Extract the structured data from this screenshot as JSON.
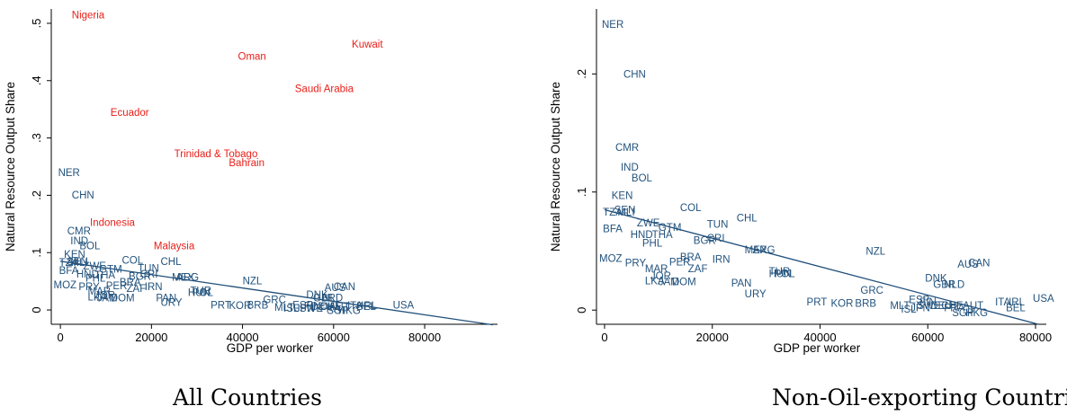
{
  "colors": {
    "oil": "#e8201a",
    "non_oil": "#23537d",
    "fit": "#1f4e79"
  },
  "chart_data": [
    {
      "type": "scatter",
      "caption": "All Countries",
      "xlabel": "GDP per worker",
      "ylabel": "Natural Resource Output Share",
      "xlim": [
        -2000,
        96000
      ],
      "ylim": [
        -0.025,
        0.525
      ],
      "xticks": [
        0,
        20000,
        40000,
        60000,
        80000
      ],
      "xtick_labels": [
        "0",
        "20000",
        "40000",
        "60000",
        "80000"
      ],
      "yticks": [
        0,
        0.1,
        0.2,
        0.3,
        0.4,
        0.5
      ],
      "ytick_labels": [
        "0",
        ".1",
        ".2",
        ".3",
        ".4",
        ".5"
      ],
      "fit_line": {
        "x": [
          0,
          95000
        ],
        "y": [
          0.085,
          -0.026
        ]
      },
      "points": [
        {
          "label": "Nigeria",
          "x": 2500,
          "y": 0.515,
          "group": "oil"
        },
        {
          "label": "Oman",
          "x": 39000,
          "y": 0.443,
          "group": "oil"
        },
        {
          "label": "Kuwait",
          "x": 64000,
          "y": 0.464,
          "group": "oil"
        },
        {
          "label": "Saudi Arabia",
          "x": 51500,
          "y": 0.386,
          "group": "oil"
        },
        {
          "label": "Ecuador",
          "x": 11000,
          "y": 0.345,
          "group": "oil"
        },
        {
          "label": "Trinidad & Tobago",
          "x": 25000,
          "y": 0.273,
          "group": "oil"
        },
        {
          "label": "Bahrain",
          "x": 37000,
          "y": 0.257,
          "group": "oil"
        },
        {
          "label": "Indonesia",
          "x": 6500,
          "y": 0.153,
          "group": "oil"
        },
        {
          "label": "Malaysia",
          "x": 20500,
          "y": 0.112,
          "group": "oil"
        },
        {
          "label": "NER",
          "x": -500,
          "y": 0.24,
          "group": "non_oil"
        },
        {
          "label": "CHN",
          "x": 2500,
          "y": 0.201,
          "group": "non_oil"
        },
        {
          "label": "CMR",
          "x": 1500,
          "y": 0.138,
          "group": "non_oil"
        },
        {
          "label": "IND",
          "x": 2200,
          "y": 0.121,
          "group": "non_oil"
        },
        {
          "label": "BOL",
          "x": 4200,
          "y": 0.112,
          "group": "non_oil"
        },
        {
          "label": "KEN",
          "x": 800,
          "y": 0.097,
          "group": "non_oil"
        },
        {
          "label": "TZA",
          "x": -300,
          "y": 0.083,
          "group": "non_oil"
        },
        {
          "label": "SEN",
          "x": 1400,
          "y": 0.085,
          "group": "non_oil"
        },
        {
          "label": "MLI",
          "x": 2200,
          "y": 0.083,
          "group": "non_oil"
        },
        {
          "label": "BFA",
          "x": -300,
          "y": 0.069,
          "group": "non_oil"
        },
        {
          "label": "ZWE",
          "x": 5000,
          "y": 0.077,
          "group": "non_oil"
        },
        {
          "label": "HND",
          "x": 3500,
          "y": 0.063,
          "group": "non_oil"
        },
        {
          "label": "THA",
          "x": 7500,
          "y": 0.061,
          "group": "non_oil"
        },
        {
          "label": "GTM",
          "x": 8500,
          "y": 0.071,
          "group": "non_oil"
        },
        {
          "label": "PHL",
          "x": 5500,
          "y": 0.056,
          "group": "non_oil"
        },
        {
          "label": "COL",
          "x": 13500,
          "y": 0.087,
          "group": "non_oil"
        },
        {
          "label": "TUN",
          "x": 17000,
          "y": 0.073,
          "group": "non_oil"
        },
        {
          "label": "BGR",
          "x": 15000,
          "y": 0.059,
          "group": "non_oil"
        },
        {
          "label": "CRI",
          "x": 17500,
          "y": 0.063,
          "group": "non_oil"
        },
        {
          "label": "CHL",
          "x": 22000,
          "y": 0.085,
          "group": "non_oil"
        },
        {
          "label": "MEX",
          "x": 24500,
          "y": 0.057,
          "group": "non_oil"
        },
        {
          "label": "ARG",
          "x": 25500,
          "y": 0.057,
          "group": "non_oil"
        },
        {
          "label": "IRN",
          "x": 18500,
          "y": 0.041,
          "group": "non_oil"
        },
        {
          "label": "BRA",
          "x": 13000,
          "y": 0.049,
          "group": "non_oil"
        },
        {
          "label": "PER",
          "x": 10000,
          "y": 0.042,
          "group": "non_oil"
        },
        {
          "label": "ZAF",
          "x": 14500,
          "y": 0.038,
          "group": "non_oil"
        },
        {
          "label": "MOZ",
          "x": -1500,
          "y": 0.044,
          "group": "non_oil"
        },
        {
          "label": "PRY",
          "x": 4000,
          "y": 0.041,
          "group": "non_oil"
        },
        {
          "label": "MAR",
          "x": 6000,
          "y": 0.033,
          "group": "non_oil"
        },
        {
          "label": "JOR",
          "x": 7500,
          "y": 0.026,
          "group": "non_oil"
        },
        {
          "label": "LKA",
          "x": 6000,
          "y": 0.023,
          "group": "non_oil"
        },
        {
          "label": "JAM",
          "x": 8000,
          "y": 0.021,
          "group": "non_oil"
        },
        {
          "label": "DOM",
          "x": 11000,
          "y": 0.021,
          "group": "non_oil"
        },
        {
          "label": "PAN",
          "x": 21000,
          "y": 0.021,
          "group": "non_oil"
        },
        {
          "label": "URY",
          "x": 22000,
          "y": 0.013,
          "group": "non_oil"
        },
        {
          "label": "HUN",
          "x": 28000,
          "y": 0.031,
          "group": "non_oil"
        },
        {
          "label": "TUR",
          "x": 28500,
          "y": 0.034,
          "group": "non_oil"
        },
        {
          "label": "POL",
          "x": 29000,
          "y": 0.031,
          "group": "non_oil"
        },
        {
          "label": "NZL",
          "x": 40000,
          "y": 0.051,
          "group": "non_oil"
        },
        {
          "label": "PRT",
          "x": 33000,
          "y": 0.009,
          "group": "non_oil"
        },
        {
          "label": "KOR",
          "x": 37000,
          "y": 0.008,
          "group": "non_oil"
        },
        {
          "label": "BRB",
          "x": 41000,
          "y": 0.009,
          "group": "non_oil"
        },
        {
          "label": "GRC",
          "x": 44500,
          "y": 0.018,
          "group": "non_oil"
        },
        {
          "label": "DNK",
          "x": 54000,
          "y": 0.027,
          "group": "non_oil"
        },
        {
          "label": "GBR",
          "x": 55500,
          "y": 0.021,
          "group": "non_oil"
        },
        {
          "label": "NLD",
          "x": 57500,
          "y": 0.021,
          "group": "non_oil"
        },
        {
          "label": "AUS",
          "x": 58000,
          "y": 0.039,
          "group": "non_oil"
        },
        {
          "label": "CAN",
          "x": 60000,
          "y": 0.041,
          "group": "non_oil"
        },
        {
          "label": "MLT",
          "x": 47000,
          "y": 0.005,
          "group": "non_oil"
        },
        {
          "label": "ISL",
          "x": 49000,
          "y": 0.003,
          "group": "non_oil"
        },
        {
          "label": "ESP",
          "x": 51000,
          "y": 0.009,
          "group": "non_oil"
        },
        {
          "label": "JPN",
          "x": 51500,
          "y": 0.003,
          "group": "non_oil"
        },
        {
          "label": "SWE",
          "x": 52500,
          "y": 0.003,
          "group": "non_oil"
        },
        {
          "label": "FIN",
          "x": 53500,
          "y": 0.007,
          "group": "non_oil"
        },
        {
          "label": "DEU",
          "x": 55000,
          "y": 0.006,
          "group": "non_oil"
        },
        {
          "label": "CHE",
          "x": 57000,
          "y": 0.006,
          "group": "non_oil"
        },
        {
          "label": "AUT",
          "x": 59000,
          "y": 0.006,
          "group": "non_oil"
        },
        {
          "label": "FRA",
          "x": 57000,
          "y": 0.003,
          "group": "non_oil"
        },
        {
          "label": "SGP",
          "x": 58500,
          "y": -0.001,
          "group": "non_oil"
        },
        {
          "label": "HKG",
          "x": 61000,
          "y": -0.001,
          "group": "non_oil"
        },
        {
          "label": "ITA",
          "x": 63000,
          "y": 0.008,
          "group": "non_oil"
        },
        {
          "label": "IRL",
          "x": 66000,
          "y": 0.008,
          "group": "non_oil"
        },
        {
          "label": "BEL",
          "x": 65000,
          "y": 0.006,
          "group": "non_oil"
        },
        {
          "label": "USA",
          "x": 73000,
          "y": 0.009,
          "group": "non_oil"
        }
      ]
    },
    {
      "type": "scatter",
      "caption": "Non-Oil-exporting Countries",
      "xlabel": "GDP per worker",
      "ylabel": "Natural Resource Output Share",
      "xlim": [
        -1500,
        82000
      ],
      "ylim": [
        -0.012,
        0.255
      ],
      "xticks": [
        0,
        20000,
        40000,
        60000,
        80000
      ],
      "xtick_labels": [
        "0",
        "20000",
        "40000",
        "60000",
        "80000"
      ],
      "yticks": [
        0,
        0.1,
        0.2
      ],
      "ytick_labels": [
        "0",
        ".1",
        ".2"
      ],
      "fit_line": {
        "x": [
          0,
          80500
        ],
        "y": [
          0.085,
          -0.012
        ]
      },
      "points": [
        {
          "label": "NER",
          "x": -500,
          "y": 0.242,
          "group": "non_oil"
        },
        {
          "label": "CHN",
          "x": 3500,
          "y": 0.2,
          "group": "non_oil"
        },
        {
          "label": "CMR",
          "x": 2000,
          "y": 0.138,
          "group": "non_oil"
        },
        {
          "label": "IND",
          "x": 3000,
          "y": 0.121,
          "group": "non_oil"
        },
        {
          "label": "BOL",
          "x": 5000,
          "y": 0.112,
          "group": "non_oil"
        },
        {
          "label": "KEN",
          "x": 1300,
          "y": 0.097,
          "group": "non_oil"
        },
        {
          "label": "TZA",
          "x": -300,
          "y": 0.083,
          "group": "non_oil"
        },
        {
          "label": "SEN",
          "x": 1800,
          "y": 0.085,
          "group": "non_oil"
        },
        {
          "label": "MLI",
          "x": 2400,
          "y": 0.083,
          "group": "non_oil"
        },
        {
          "label": "BFA",
          "x": -300,
          "y": 0.069,
          "group": "non_oil"
        },
        {
          "label": "ZWE",
          "x": 6000,
          "y": 0.074,
          "group": "non_oil"
        },
        {
          "label": "GTM",
          "x": 10000,
          "y": 0.07,
          "group": "non_oil"
        },
        {
          "label": "HND",
          "x": 4800,
          "y": 0.064,
          "group": "non_oil"
        },
        {
          "label": "THA",
          "x": 8800,
          "y": 0.064,
          "group": "non_oil"
        },
        {
          "label": "PHL",
          "x": 7000,
          "y": 0.057,
          "group": "non_oil"
        },
        {
          "label": "COL",
          "x": 14000,
          "y": 0.087,
          "group": "non_oil"
        },
        {
          "label": "TUN",
          "x": 19000,
          "y": 0.073,
          "group": "non_oil"
        },
        {
          "label": "CHL",
          "x": 24500,
          "y": 0.078,
          "group": "non_oil"
        },
        {
          "label": "BGR",
          "x": 16500,
          "y": 0.059,
          "group": "non_oil"
        },
        {
          "label": "CRI",
          "x": 19000,
          "y": 0.061,
          "group": "non_oil"
        },
        {
          "label": "MEX",
          "x": 26000,
          "y": 0.051,
          "group": "non_oil"
        },
        {
          "label": "ARG",
          "x": 27500,
          "y": 0.051,
          "group": "non_oil"
        },
        {
          "label": "BRA",
          "x": 14000,
          "y": 0.045,
          "group": "non_oil"
        },
        {
          "label": "IRN",
          "x": 20000,
          "y": 0.043,
          "group": "non_oil"
        },
        {
          "label": "PER",
          "x": 12000,
          "y": 0.041,
          "group": "non_oil"
        },
        {
          "label": "ZAF",
          "x": 15500,
          "y": 0.035,
          "group": "non_oil"
        },
        {
          "label": "MOZ",
          "x": -1000,
          "y": 0.044,
          "group": "non_oil"
        },
        {
          "label": "PRY",
          "x": 3800,
          "y": 0.04,
          "group": "non_oil"
        },
        {
          "label": "MAR",
          "x": 7500,
          "y": 0.035,
          "group": "non_oil"
        },
        {
          "label": "JOR",
          "x": 8500,
          "y": 0.029,
          "group": "non_oil"
        },
        {
          "label": "LKA",
          "x": 7500,
          "y": 0.025,
          "group": "non_oil"
        },
        {
          "label": "JAM",
          "x": 10000,
          "y": 0.024,
          "group": "non_oil"
        },
        {
          "label": "DOM",
          "x": 12500,
          "y": 0.024,
          "group": "non_oil"
        },
        {
          "label": "PAN",
          "x": 23500,
          "y": 0.023,
          "group": "non_oil"
        },
        {
          "label": "URY",
          "x": 26000,
          "y": 0.014,
          "group": "non_oil"
        },
        {
          "label": "HUN",
          "x": 30500,
          "y": 0.031,
          "group": "non_oil"
        },
        {
          "label": "TUR",
          "x": 30500,
          "y": 0.033,
          "group": "non_oil"
        },
        {
          "label": "POL",
          "x": 31500,
          "y": 0.031,
          "group": "non_oil"
        },
        {
          "label": "NZL",
          "x": 48500,
          "y": 0.05,
          "group": "non_oil"
        },
        {
          "label": "GRC",
          "x": 47500,
          "y": 0.017,
          "group": "non_oil"
        },
        {
          "label": "PRT",
          "x": 37500,
          "y": 0.007,
          "group": "non_oil"
        },
        {
          "label": "KOR",
          "x": 42000,
          "y": 0.006,
          "group": "non_oil"
        },
        {
          "label": "BRB",
          "x": 46500,
          "y": 0.006,
          "group": "non_oil"
        },
        {
          "label": "DNK",
          "x": 59500,
          "y": 0.027,
          "group": "non_oil"
        },
        {
          "label": "GBR",
          "x": 61000,
          "y": 0.022,
          "group": "non_oil"
        },
        {
          "label": "NLD",
          "x": 63000,
          "y": 0.022,
          "group": "non_oil"
        },
        {
          "label": "AUS",
          "x": 65500,
          "y": 0.039,
          "group": "non_oil"
        },
        {
          "label": "CAN",
          "x": 67500,
          "y": 0.04,
          "group": "non_oil"
        },
        {
          "label": "MLT",
          "x": 53000,
          "y": 0.004,
          "group": "non_oil"
        },
        {
          "label": "ISL",
          "x": 55000,
          "y": 0.001,
          "group": "non_oil"
        },
        {
          "label": "ESP",
          "x": 56500,
          "y": 0.009,
          "group": "non_oil"
        },
        {
          "label": "JPN",
          "x": 56800,
          "y": 0.002,
          "group": "non_oil"
        },
        {
          "label": "SWE",
          "x": 58000,
          "y": 0.004,
          "group": "non_oil"
        },
        {
          "label": "FIN",
          "x": 58500,
          "y": 0.007,
          "group": "non_oil"
        },
        {
          "label": "DEU",
          "x": 60500,
          "y": 0.004,
          "group": "non_oil"
        },
        {
          "label": "CHE",
          "x": 62500,
          "y": 0.004,
          "group": "non_oil"
        },
        {
          "label": "AUT",
          "x": 66500,
          "y": 0.004,
          "group": "non_oil"
        },
        {
          "label": "FRA",
          "x": 63000,
          "y": 0.002,
          "group": "non_oil"
        },
        {
          "label": "SGP",
          "x": 64500,
          "y": -0.002,
          "group": "non_oil"
        },
        {
          "label": "HKG",
          "x": 67000,
          "y": -0.002,
          "group": "non_oil"
        },
        {
          "label": "ITA",
          "x": 72500,
          "y": 0.007,
          "group": "non_oil"
        },
        {
          "label": "IRL",
          "x": 75000,
          "y": 0.007,
          "group": "non_oil"
        },
        {
          "label": "BEL",
          "x": 74500,
          "y": 0.002,
          "group": "non_oil"
        },
        {
          "label": "USA",
          "x": 79500,
          "y": 0.01,
          "group": "non_oil"
        }
      ]
    }
  ]
}
